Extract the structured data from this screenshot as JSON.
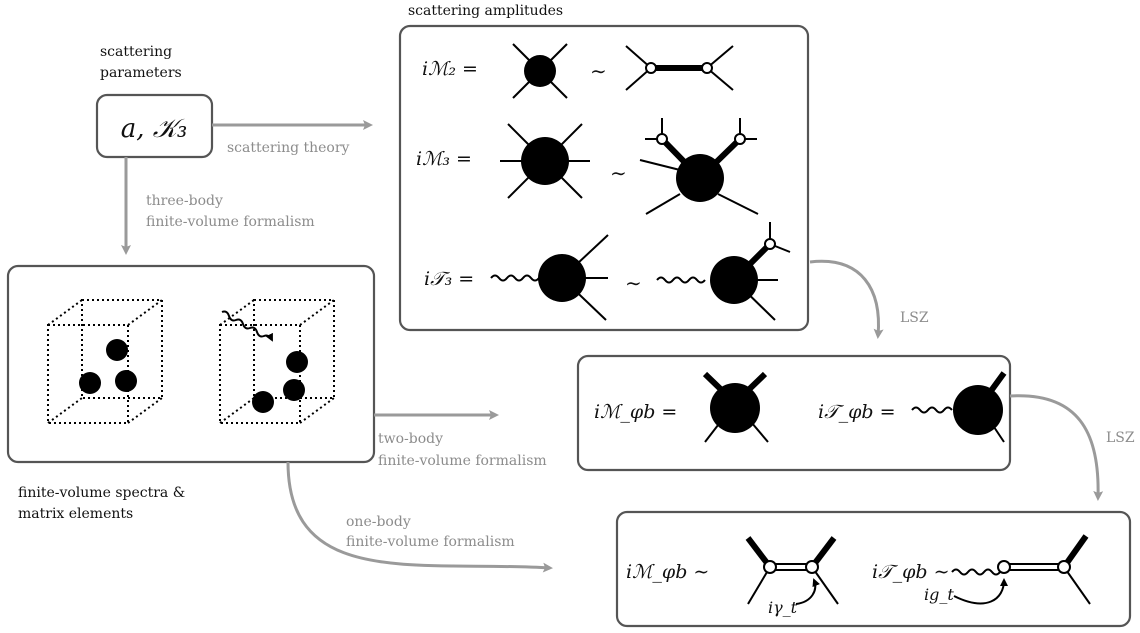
{
  "labels": {
    "scattering_parameters": [
      "scattering",
      "parameters"
    ],
    "scattering_amplitudes": "scattering amplitudes",
    "finite_volume_spectra": [
      "finite-volume spectra &",
      "matrix elements"
    ]
  },
  "params_box": {
    "text": "a, 𝒦₃"
  },
  "arrows": {
    "scattering_theory": "scattering theory",
    "three_body": [
      "three-body",
      "finite-volume formalism"
    ],
    "two_body": [
      "two-body",
      "finite-volume formalism"
    ],
    "one_body": [
      "one-body",
      "finite-volume formalism"
    ],
    "lsz_1": "LSZ",
    "lsz_2": "LSZ"
  },
  "equations": {
    "m2": "iℳ₂ =",
    "m3": "iℳ₃ =",
    "t3": "i𝒯₃ =",
    "m_phib": "iℳ_φb =",
    "t_phib": "i𝒯_φb =",
    "m_phib_pole": "iℳ_φb ∼",
    "t_phib_pole": "i𝒯_φb ∼",
    "gamma": "iγ_t",
    "g": "ig_t"
  },
  "symbols": {
    "sim": "∼"
  },
  "colors": {
    "box_stroke": "#555555",
    "arrow": "#9a9a9a",
    "arrow_label": "#8c8c8c"
  }
}
